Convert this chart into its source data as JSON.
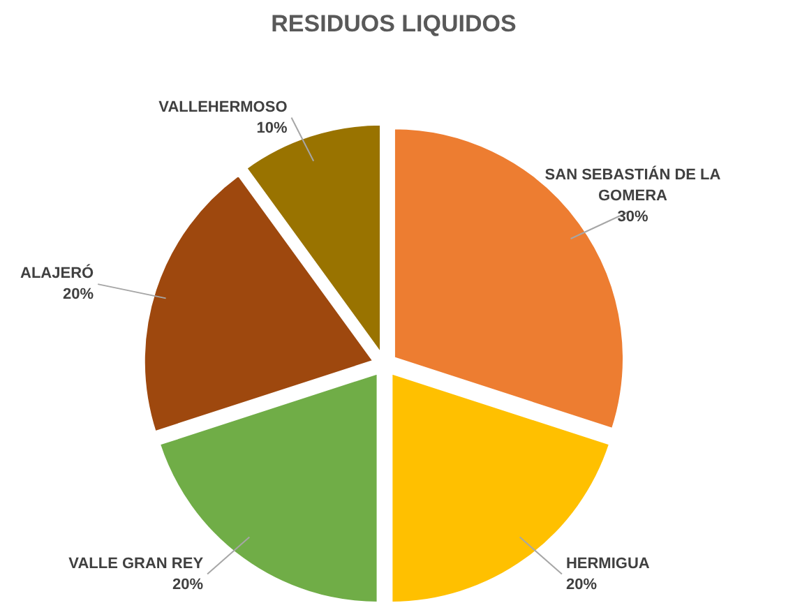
{
  "chart_data": {
    "type": "pie",
    "title": "RESIDUOS LIQUIDOS",
    "categories": [
      "SAN SEBASTIÁN DE LA GOMERA",
      "HERMIGUA",
      "VALLE GRAN REY",
      "ALAJERÓ",
      "VALLEHERMOSO"
    ],
    "values": [
      30,
      20,
      20,
      20,
      10
    ],
    "colors": [
      "#ed7d31",
      "#ffc000",
      "#70ad47",
      "#9e480e",
      "#997300"
    ],
    "value_labels": [
      "30%",
      "20%",
      "20%",
      "20%",
      "10%"
    ]
  }
}
